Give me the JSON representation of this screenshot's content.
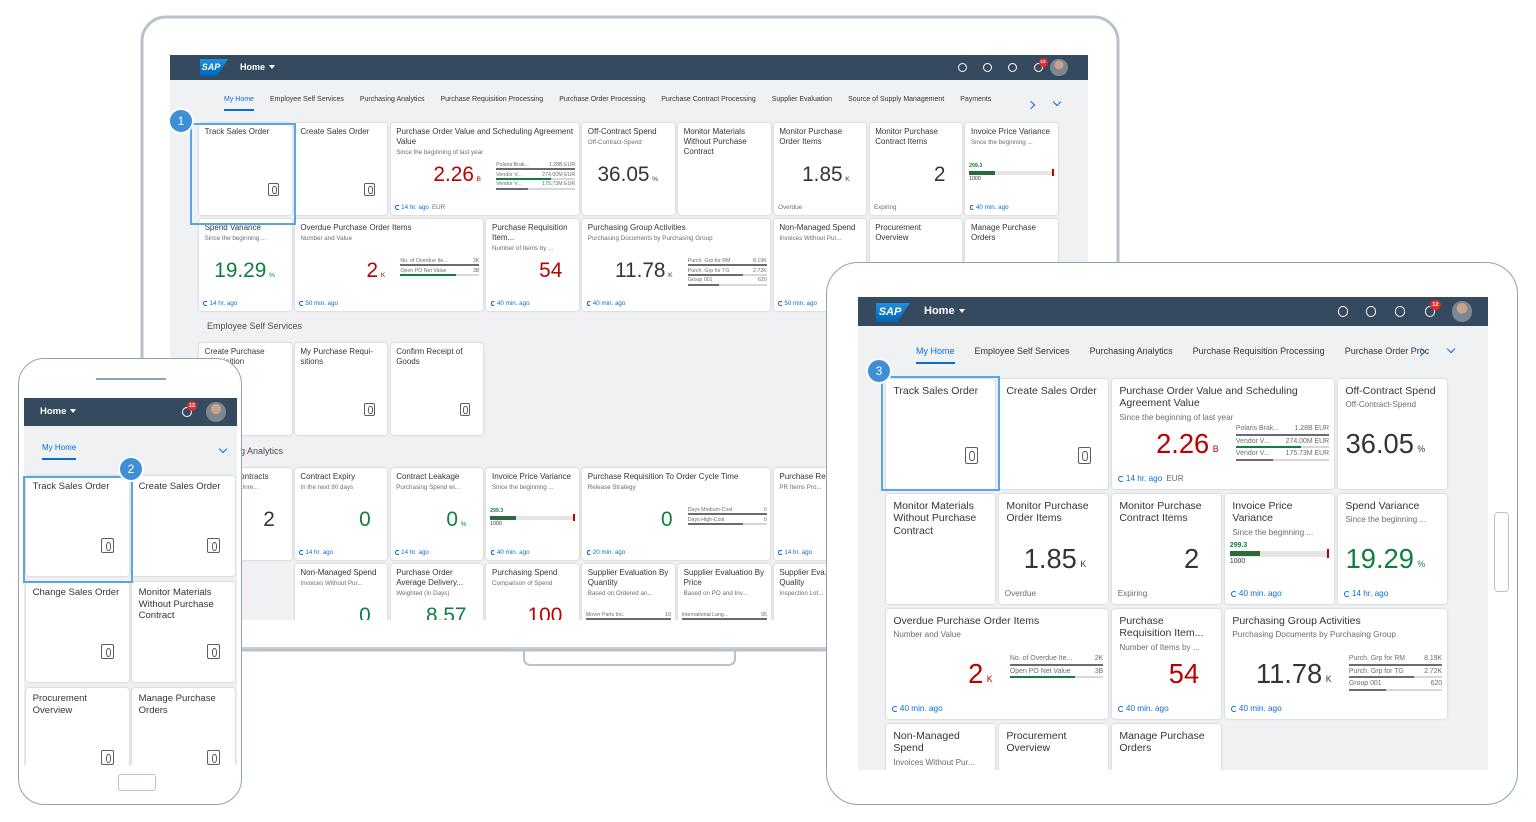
{
  "callouts": [
    1,
    2,
    3
  ],
  "laptop": {
    "header": {
      "logo": "SAP",
      "title": "Home",
      "notifications": 12
    },
    "tabs": [
      "My Home",
      "Employee Self Services",
      "Purchasing Analytics",
      "Purchase Requisition Processing",
      "Purchase Order Processing",
      "Purchase Contract Processing",
      "Supplier Evaluation",
      "Source of Supply Management",
      "Payments"
    ],
    "sections": [
      "Employee Self Services",
      "Purchasing Analytics"
    ],
    "tiles": [
      {
        "title": "Track Sales Order"
      },
      {
        "title": "Create Sales Order"
      },
      {
        "title": "Purchase Order Value and Scheduling Agreement Value",
        "subtitle": "Since the beginning of last year",
        "value": 2.26,
        "unit": "B",
        "color": "negative",
        "list": [
          {
            "label": "Polaris Brak...",
            "value": "1.28B EUR"
          },
          {
            "label": "Vendor V...",
            "value": "274.00M EUR"
          },
          {
            "label": "Vendor V...",
            "value": "175.73M EUR"
          }
        ],
        "footer": "14 hr. ago",
        "currency": "EUR"
      },
      {
        "title": "Off-Contract Spend",
        "subtitle": "Off-Contract-Spend",
        "value": 36.05,
        "unit": "%"
      },
      {
        "title": "Monitor Materials Without Purchase Contract"
      },
      {
        "title": "Monitor Purchase Order Items",
        "value": 1.85,
        "unit": "K",
        "status": "Overdue"
      },
      {
        "title": "Monitor Purchase Contract Items",
        "value": 2,
        "status": "Expiring"
      },
      {
        "title": "Invoice Price Variance",
        "subtitle": "Since the beginning ...",
        "bullet": {
          "value": 299.3,
          "max": 1000
        },
        "footer": "40 min. ago"
      },
      {
        "title": "Spend Variance",
        "subtitle": "Since the beginning ...",
        "value": 19.29,
        "unit": "%",
        "color": "positive",
        "footer": "14 hr. ago"
      },
      {
        "title": "Overdue Purchase Order Items",
        "subtitle": "Number and Value",
        "value": 2,
        "unit": "K",
        "color": "negative",
        "list": [
          {
            "label": "No. of Overdue Ite...",
            "value": "2K"
          },
          {
            "label": "Open PO Net Value",
            "value": "3B"
          }
        ],
        "footer": "50 min. ago"
      },
      {
        "title": "Purchase Requisition Item...",
        "subtitle": "Number of Items by ...",
        "value": 54,
        "color": "negative",
        "footer": "40 min. ago"
      },
      {
        "title": "Purchasing Group Activities",
        "subtitle": "Purchasing Documents by Purchasing Group",
        "value": 11.78,
        "unit": "K",
        "list": [
          {
            "label": "Purch. Grp for RM",
            "value": "8.19K"
          },
          {
            "label": "Purch. Grp for TG",
            "value": "2.72K"
          },
          {
            "label": "Group 001",
            "value": "620"
          }
        ],
        "footer": "40 min. ago"
      },
      {
        "title": "Non-Managed Spend",
        "subtitle": "Invoices Without Pur...",
        "footer": "50 min. ago"
      },
      {
        "title": "Procurement Overview"
      },
      {
        "title": "Manage Purchase Orders"
      },
      {
        "title": "Create Purchase Requisition"
      },
      {
        "title": "My Purchase Requi-sitions"
      },
      {
        "title": "Confirm Receipt of Goods"
      },
      {
        "title": "Unused Contracts",
        "subtitle": "Expired and Unre...",
        "value": 2,
        "footer": "14 hr. ago"
      },
      {
        "title": "Contract Expiry",
        "subtitle": "In the next 90 days",
        "value": 0,
        "color": "positive",
        "footer": "14 hr. ago"
      },
      {
        "title": "Contract Leakage",
        "subtitle": "Purchasing Spend wi...",
        "value": 0,
        "unit": "%",
        "color": "positive",
        "footer": "14 hr. ago"
      },
      {
        "title": "Invoice Price Variance",
        "subtitle": "Since the beginning ...",
        "bullet": {
          "value": 299.3,
          "max": 1000
        },
        "footer": "40 min. ago"
      },
      {
        "title": "Purchase Requisition To Order Cycle Time",
        "subtitle": "Release Strategy",
        "value": 0,
        "color": "positive",
        "list": [
          {
            "label": "Days Medium-Cost",
            "value": "0"
          },
          {
            "label": "Days High-Cost",
            "value": "0"
          }
        ],
        "footer": "20 min. ago"
      },
      {
        "title": "Purchase Re...",
        "subtitle": "PR Items Pro...",
        "footer": "14 hr. ago"
      },
      {
        "title": "Non-Managed Spend",
        "subtitle": "Invoices Without Pur...",
        "value": 0,
        "color": "positive"
      },
      {
        "title": "Purchase Order Average Delivery...",
        "subtitle": "Weighted (In Days)",
        "value": 8.57,
        "color": "positive"
      },
      {
        "title": "Purchasing Spend",
        "subtitle": "Comparison of Spend",
        "value": 100,
        "color": "negative"
      },
      {
        "title": "Supplier Evaluation By Quantity",
        "subtitle": "Based on Ordered an...",
        "list": [
          {
            "label": "Mover Parts Inc.",
            "value": "10"
          },
          {
            "label": "Electronics Supply...",
            "value": "10"
          }
        ]
      },
      {
        "title": "Supplier Evaluation By Price",
        "subtitle": "Based on PO and Inv...",
        "list": [
          {
            "label": "International Lang...",
            "value": "95"
          },
          {
            "label": "Polaris Braken Inc.",
            "value": "40"
          }
        ]
      },
      {
        "title": "Supplier Eva... by Quality",
        "subtitle": "Inspection Lot..."
      }
    ]
  },
  "phone": {
    "header": {
      "title": "Home",
      "notifications": 12
    },
    "tabs": [
      "My Home"
    ],
    "tiles": [
      {
        "title": "Track Sales Order"
      },
      {
        "title": "Create Sales Order"
      },
      {
        "title": "Change Sales Order"
      },
      {
        "title": "Monitor Materials Without Purchase Contract"
      },
      {
        "title": "Procurement Overview"
      },
      {
        "title": "Manage Purchase Orders"
      }
    ]
  },
  "tablet": {
    "header": {
      "logo": "SAP",
      "title": "Home",
      "notifications": 12
    },
    "tabs": [
      "My Home",
      "Employee Self Services",
      "Purchasing Analytics",
      "Purchase Requisition Processing",
      "Purchase Order Proc"
    ],
    "tiles": [
      {
        "title": "Track Sales Order"
      },
      {
        "title": "Create Sales Order"
      },
      {
        "title": "Purchase Order Value and Scheduling Agreement Value",
        "subtitle": "Since the beginning of last year",
        "value": 2.26,
        "unit": "B",
        "color": "negative",
        "list": [
          {
            "label": "Polaris Brak...",
            "value": "1.28B EUR"
          },
          {
            "label": "Vendor V...",
            "value": "274.00M EUR"
          },
          {
            "label": "Vendor V...",
            "value": "175.73M EUR"
          }
        ],
        "footer": "14 hr. ago",
        "currency": "EUR"
      },
      {
        "title": "Off-Contract Spend",
        "subtitle": "Off-Contract-Spend",
        "value": 36.05,
        "unit": "%"
      },
      {
        "title": "Monitor Materials Without Purchase Contract"
      },
      {
        "title": "Monitor Purchase Order Items",
        "value": 1.85,
        "unit": "K",
        "status": "Overdue"
      },
      {
        "title": "Monitor Purchase Contract Items",
        "value": 2,
        "status": "Expiring"
      },
      {
        "title": "Invoice Price Variance",
        "subtitle": "Since the beginning ...",
        "bullet": {
          "value": 299.3,
          "max": 1000
        },
        "footer": "40 min. ago"
      },
      {
        "title": "Spend Variance",
        "subtitle": "Since the beginning ...",
        "value": 19.29,
        "unit": "%",
        "color": "positive",
        "footer": "14 hr. ago"
      },
      {
        "title": "Overdue Purchase Order Items",
        "subtitle": "Number and Value",
        "value": 2,
        "unit": "K",
        "color": "negative",
        "list": [
          {
            "label": "No. of Overdue Ite...",
            "value": "2K"
          },
          {
            "label": "Open PO Net Value",
            "value": "3B"
          }
        ],
        "footer": "40 min. ago"
      },
      {
        "title": "Purchase Requisition Item...",
        "subtitle": "Number of Items by ...",
        "value": 54,
        "color": "negative",
        "footer": "40 min. ago"
      },
      {
        "title": "Purchasing Group Activities",
        "subtitle": "Purchasing Documents by Purchasing Group",
        "value": 11.78,
        "unit": "K",
        "list": [
          {
            "label": "Purch. Grp for RM",
            "value": "8.19K"
          },
          {
            "label": "Purch. Grp for TG",
            "value": "2.72K"
          },
          {
            "label": "Group 001",
            "value": "620"
          }
        ],
        "footer": "40 min. ago"
      },
      {
        "title": "Non-Managed Spend",
        "subtitle": "Invoices Without Pur..."
      },
      {
        "title": "Procurement Overview"
      },
      {
        "title": "Manage Purchase Orders"
      }
    ]
  }
}
